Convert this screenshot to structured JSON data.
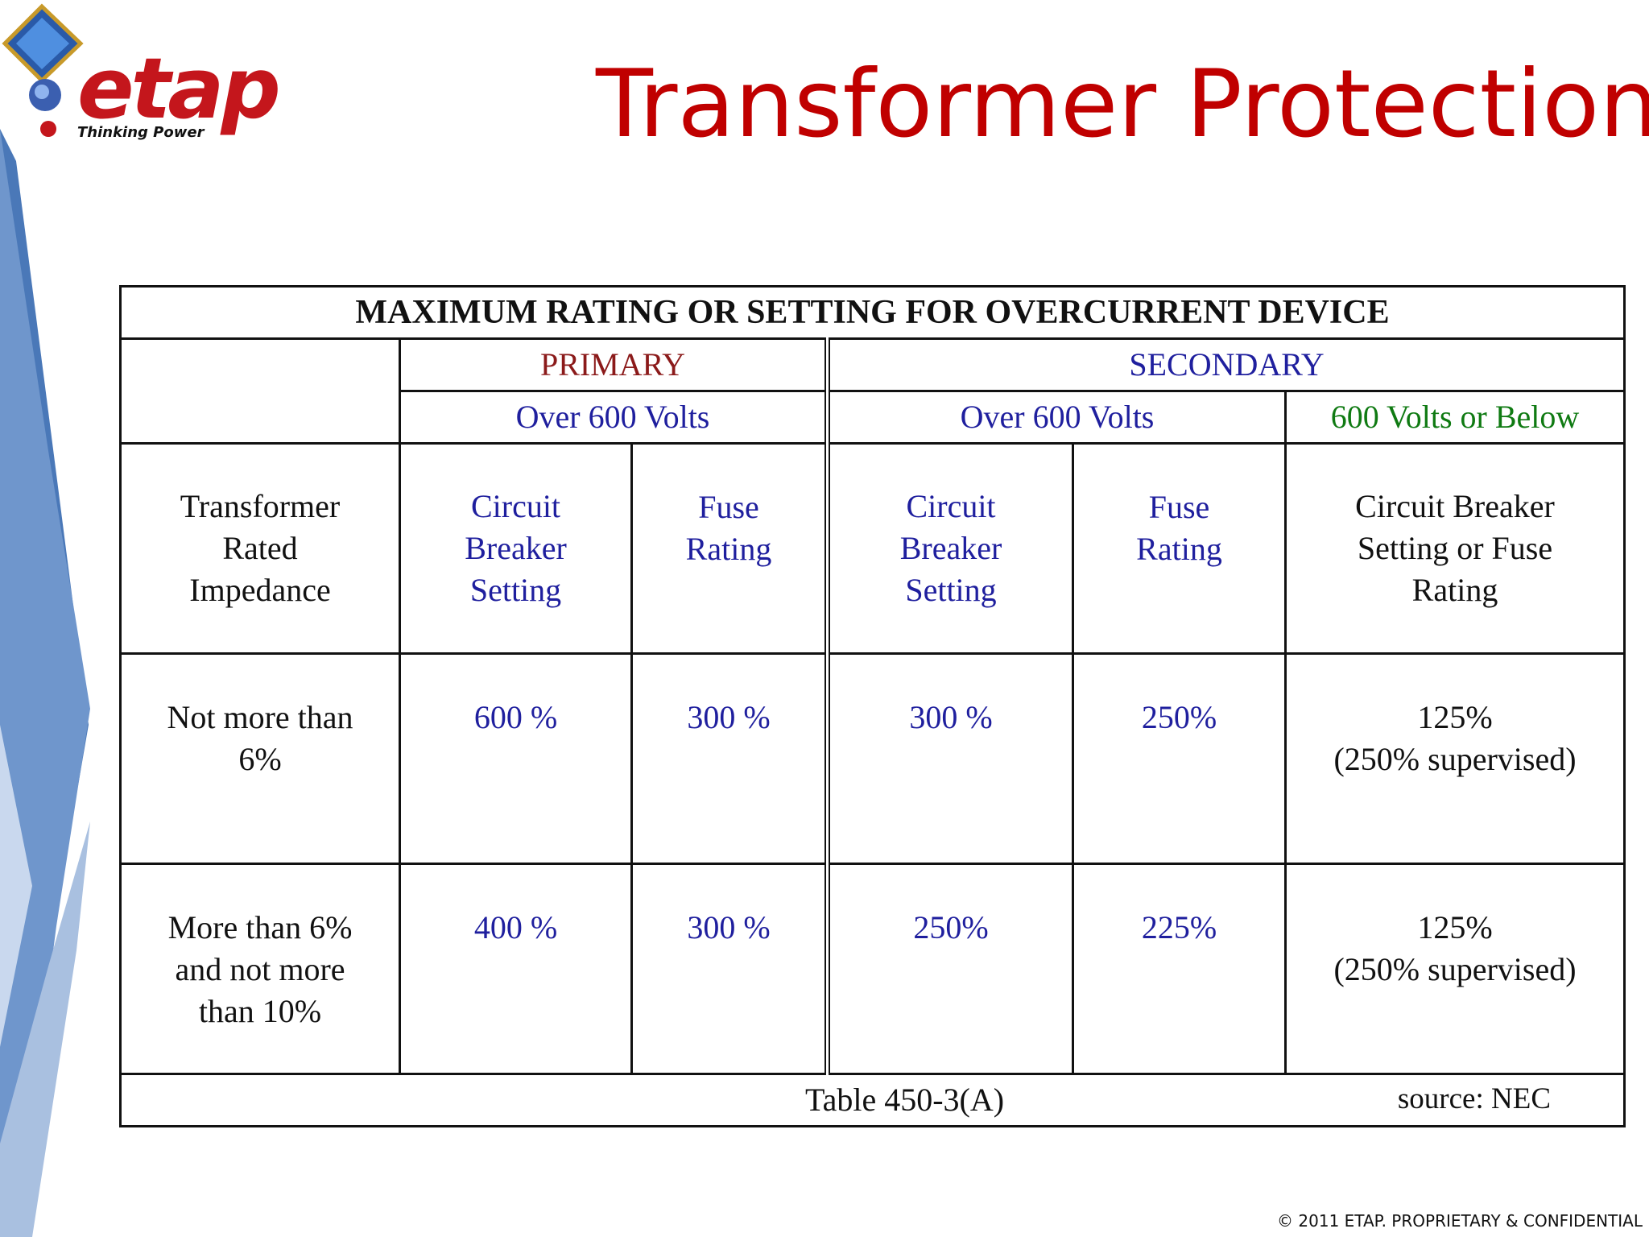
{
  "logo": {
    "name": "etap",
    "tagline": "Thinking Power",
    "registered": "®"
  },
  "slide": {
    "title": "Transformer Protection"
  },
  "table": {
    "title": "MAXIMUM RATING OR SETTING FOR OVERCURRENT DEVICE",
    "primary_label": "PRIMARY",
    "secondary_label": "SECONDARY",
    "primary_voltage": "Over 600 Volts",
    "secondary_voltage_high": "Over 600 Volts",
    "secondary_voltage_low": "600 Volts or Below",
    "col_headers": {
      "impedance": [
        "Transformer",
        "Rated",
        "Impedance"
      ],
      "primary_cb": [
        "Circuit",
        "Breaker",
        "Setting"
      ],
      "primary_fuse": [
        "Fuse",
        "Rating"
      ],
      "secondary_cb": [
        "Circuit",
        "Breaker",
        "Setting"
      ],
      "secondary_fuse": [
        "Fuse",
        "Rating"
      ],
      "secondary_low": [
        "Circuit Breaker",
        "Setting or Fuse",
        "Rating"
      ]
    },
    "rows": [
      {
        "impedance": [
          "Not more than",
          "6%"
        ],
        "primary_cb": "600 %",
        "primary_fuse": "300 %",
        "secondary_cb": "300 %",
        "secondary_fuse": "250%",
        "secondary_low": [
          "125%",
          "(250% supervised)"
        ]
      },
      {
        "impedance": [
          "More than 6%",
          "and not more",
          "than 10%"
        ],
        "primary_cb": "400 %",
        "primary_fuse": "300 %",
        "secondary_cb": "250%",
        "secondary_fuse": "225%",
        "secondary_low": [
          "125%",
          "(250% supervised)"
        ]
      }
    ],
    "footer_table_ref": "Table 450-3(A)",
    "footer_source": "source: NEC"
  },
  "footer": {
    "copyright": "© 2011 ETAP. PROPRIETARY & CONFIDENTIAL"
  },
  "colors": {
    "title_red": "#c00000",
    "primary_red": "#8b1a1a",
    "blue_text": "#1f1f9e",
    "green_text": "#0f7a12",
    "ribbon_blue": "#4a78b8"
  }
}
